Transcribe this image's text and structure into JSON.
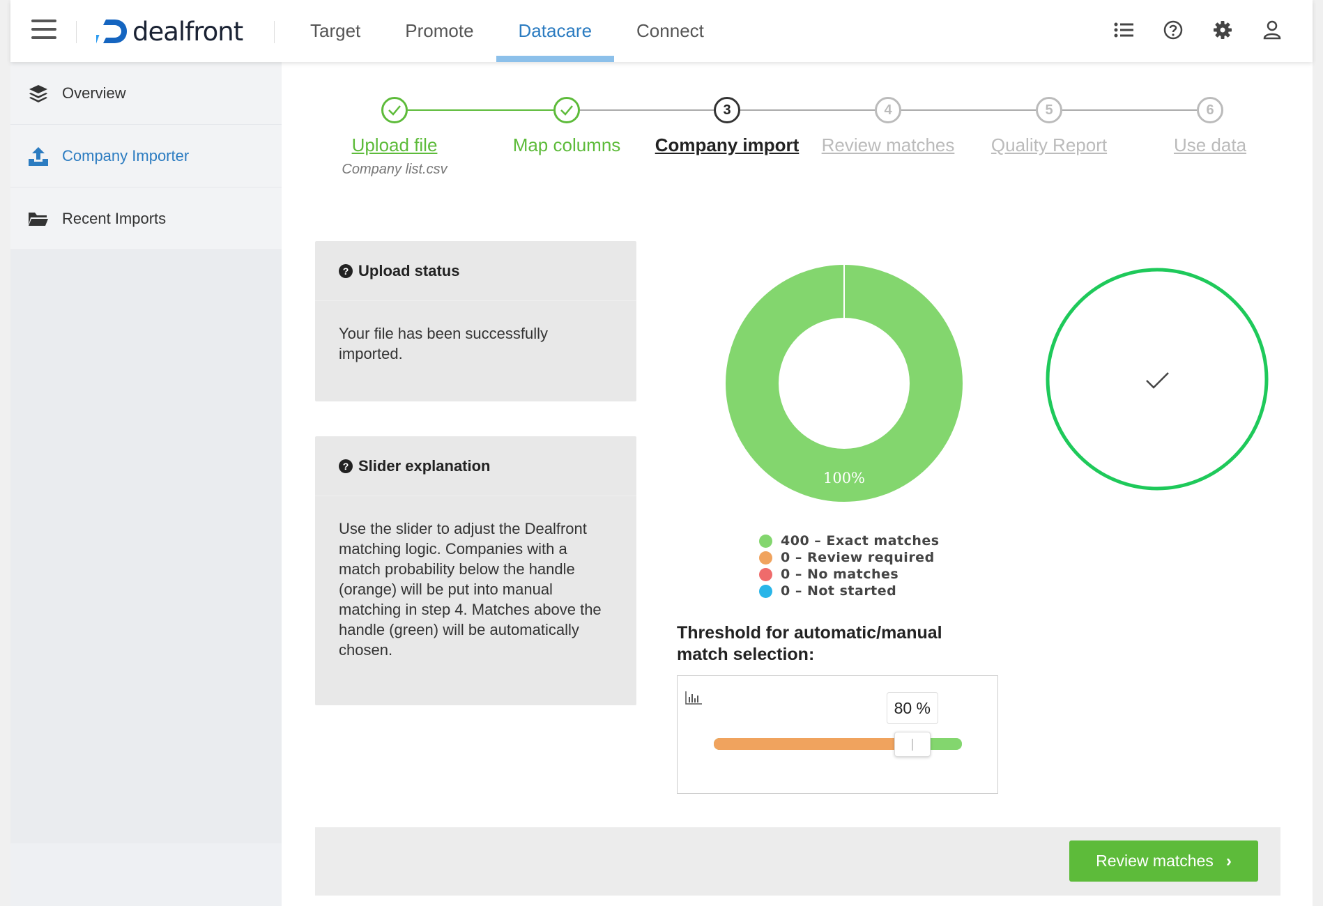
{
  "brand": {
    "name": "dealfront"
  },
  "nav": {
    "items": [
      {
        "label": "Target"
      },
      {
        "label": "Promote"
      },
      {
        "label": "Datacare"
      },
      {
        "label": "Connect"
      }
    ],
    "active": "Datacare"
  },
  "top_icons": [
    "list-icon",
    "help-icon",
    "gear-icon",
    "user-icon"
  ],
  "sidebar": {
    "items": [
      {
        "label": "Overview",
        "icon": "layers-icon"
      },
      {
        "label": "Company Importer",
        "icon": "upload-icon"
      },
      {
        "label": "Recent Imports",
        "icon": "folder-open-icon"
      }
    ],
    "active": "Company Importer"
  },
  "stepper": {
    "steps": [
      {
        "number": "1",
        "label": "Upload file",
        "status": "done",
        "subtitle": "Company list.csv"
      },
      {
        "number": "2",
        "label": "Map columns",
        "status": "done"
      },
      {
        "number": "3",
        "label": "Company import",
        "status": "current"
      },
      {
        "number": "4",
        "label": "Review matches",
        "status": "todo"
      },
      {
        "number": "5",
        "label": "Quality Report",
        "status": "todo"
      },
      {
        "number": "6",
        "label": "Use data",
        "status": "todo"
      }
    ]
  },
  "upload_status": {
    "title": "Upload status",
    "text": "Your file has been successfully imported."
  },
  "slider_explanation": {
    "title": "Slider explanation",
    "text": "Use the slider to adjust the Dealfront matching logic. Companies with a match probability below the handle (orange) will be put into manual matching in step 4. Matches above the handle (green) will be automatically chosen."
  },
  "chart_data": {
    "type": "pie",
    "categories": [
      "Exact matches",
      "Review required",
      "No matches",
      "Not started"
    ],
    "values": [
      400,
      0,
      0,
      0
    ],
    "colors": [
      "#83d66e",
      "#f0a35e",
      "#ef6b6b",
      "#29b5e8"
    ],
    "data_label": "100%",
    "legend": [
      {
        "text": "400 – Exact matches",
        "color": "#83d66e"
      },
      {
        "text": "0 – Review required",
        "color": "#f0a35e"
      },
      {
        "text": "0 – No matches",
        "color": "#ef6b6b"
      },
      {
        "text": "0 – Not started",
        "color": "#29b5e8"
      }
    ]
  },
  "status_indicator": {
    "state": "complete",
    "icon": "check-icon",
    "color": "#1ec95a"
  },
  "threshold": {
    "title": "Threshold for automatic/manual match selection:",
    "value": 80,
    "value_label": "80 %",
    "icon": "histogram-icon",
    "below_color": "#f0a35e",
    "above_color": "#83d66e"
  },
  "actions": {
    "review_button": "Review matches"
  }
}
